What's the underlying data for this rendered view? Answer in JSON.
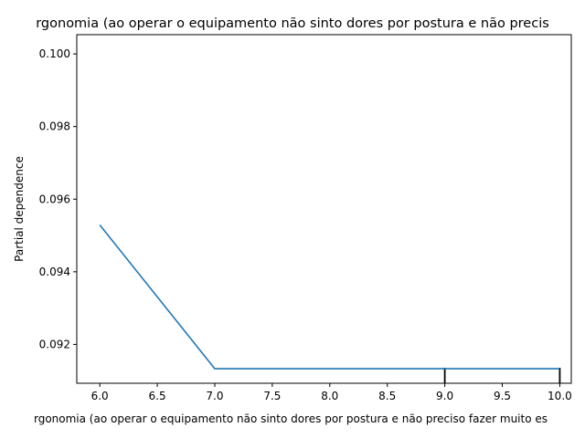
{
  "chart_data": {
    "type": "line",
    "title": "rgonomia (ao operar o equipamento não sinto dores por postura e não precis",
    "xlabel": "rgonomia (ao operar o equipamento não sinto dores por postura e não preciso fazer muito es",
    "ylabel": "Partial dependence",
    "xlim": [
      5.8,
      10.1
    ],
    "ylim": [
      0.09093,
      0.10053
    ],
    "x_ticks": [
      "6.0",
      "6.5",
      "7.0",
      "7.5",
      "8.0",
      "8.5",
      "9.0",
      "9.5",
      "10.0"
    ],
    "y_ticks": [
      "0.092",
      "0.094",
      "0.096",
      "0.098",
      "0.100"
    ],
    "x": [
      6.0,
      7.0,
      8.0,
      9.0,
      10.0
    ],
    "series": [
      {
        "values": [
          0.09529,
          0.09133,
          0.09133,
          0.09133,
          0.09133
        ]
      }
    ],
    "rug_deciles": [
      9.0,
      10.0
    ],
    "grid": false,
    "line_color": "#1f77b4"
  }
}
